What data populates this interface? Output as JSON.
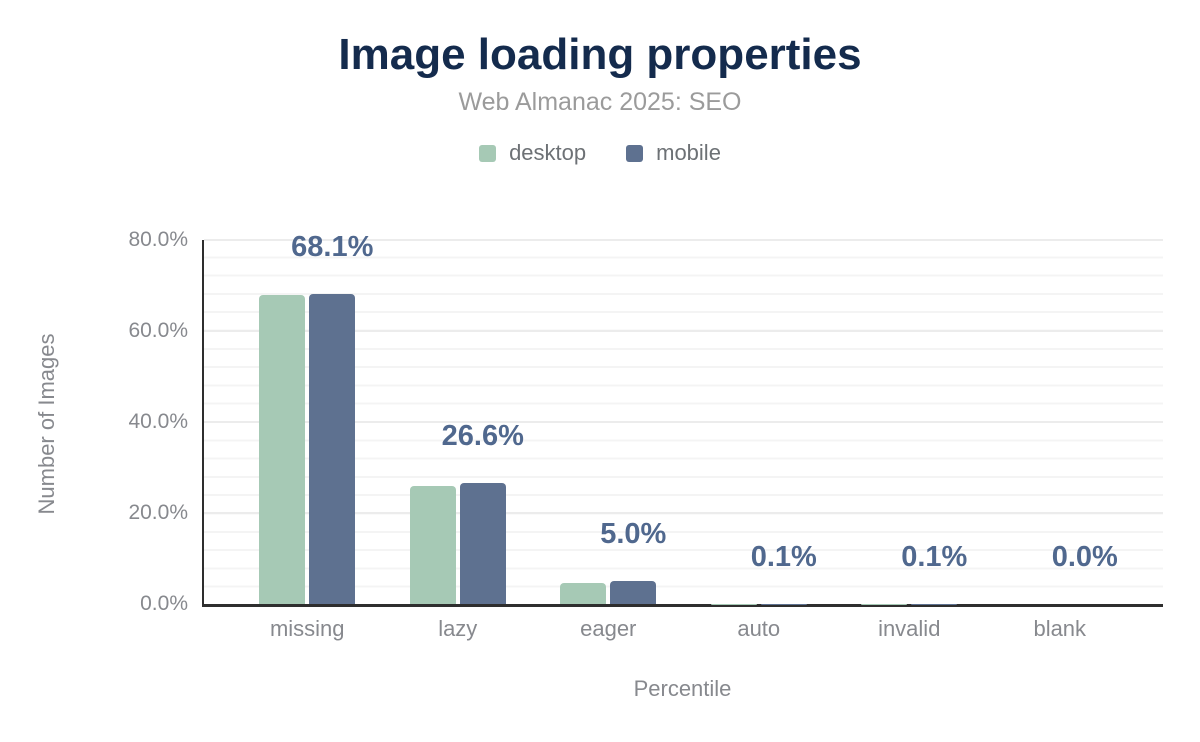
{
  "chart": {
    "title": "Image loading properties",
    "subtitle": "Web Almanac 2025: SEO",
    "y_axis_title": "Number of Images",
    "x_axis_title": "Percentile",
    "y_ticks": [
      "0.0%",
      "20.0%",
      "40.0%",
      "60.0%",
      "80.0%"
    ],
    "legend": {
      "desktop_label": "desktop",
      "mobile_label": "mobile"
    }
  },
  "chart_data": {
    "type": "bar",
    "title": "Image loading properties",
    "subtitle": "Web Almanac 2025: SEO",
    "categories": [
      "missing",
      "lazy",
      "eager",
      "auto",
      "invalid",
      "blank"
    ],
    "series": [
      {
        "name": "desktop",
        "color": "#a6c9b5",
        "values": [
          67.9,
          25.9,
          4.7,
          0.1,
          0.1,
          0.0
        ]
      },
      {
        "name": "mobile",
        "color": "#5e7190",
        "values": [
          68.1,
          26.6,
          5.0,
          0.1,
          0.1,
          0.0
        ]
      }
    ],
    "data_labels": [
      "68.1%",
      "26.6%",
      "5.0%",
      "0.1%",
      "0.1%",
      "0.0%"
    ],
    "data_label_series": "mobile",
    "xlabel": "Percentile",
    "ylabel": "Number of Images",
    "ylim": [
      0,
      80
    ],
    "y_tick_labels": [
      "0.0%",
      "20.0%",
      "40.0%",
      "60.0%",
      "80.0%"
    ],
    "grid": "on",
    "legend_position": "top"
  },
  "colors": {
    "title": "#142b4d",
    "subtitle": "#9b9b9b",
    "axis_text": "#87898e",
    "legend_text": "#6d7175",
    "data_label": "#50688e",
    "desktop": "#a6c9b5",
    "mobile": "#5e7190",
    "axis_line": "#2e2e2e",
    "gridline_minor": "#f4f4f4",
    "gridline_major": "#ececec"
  }
}
